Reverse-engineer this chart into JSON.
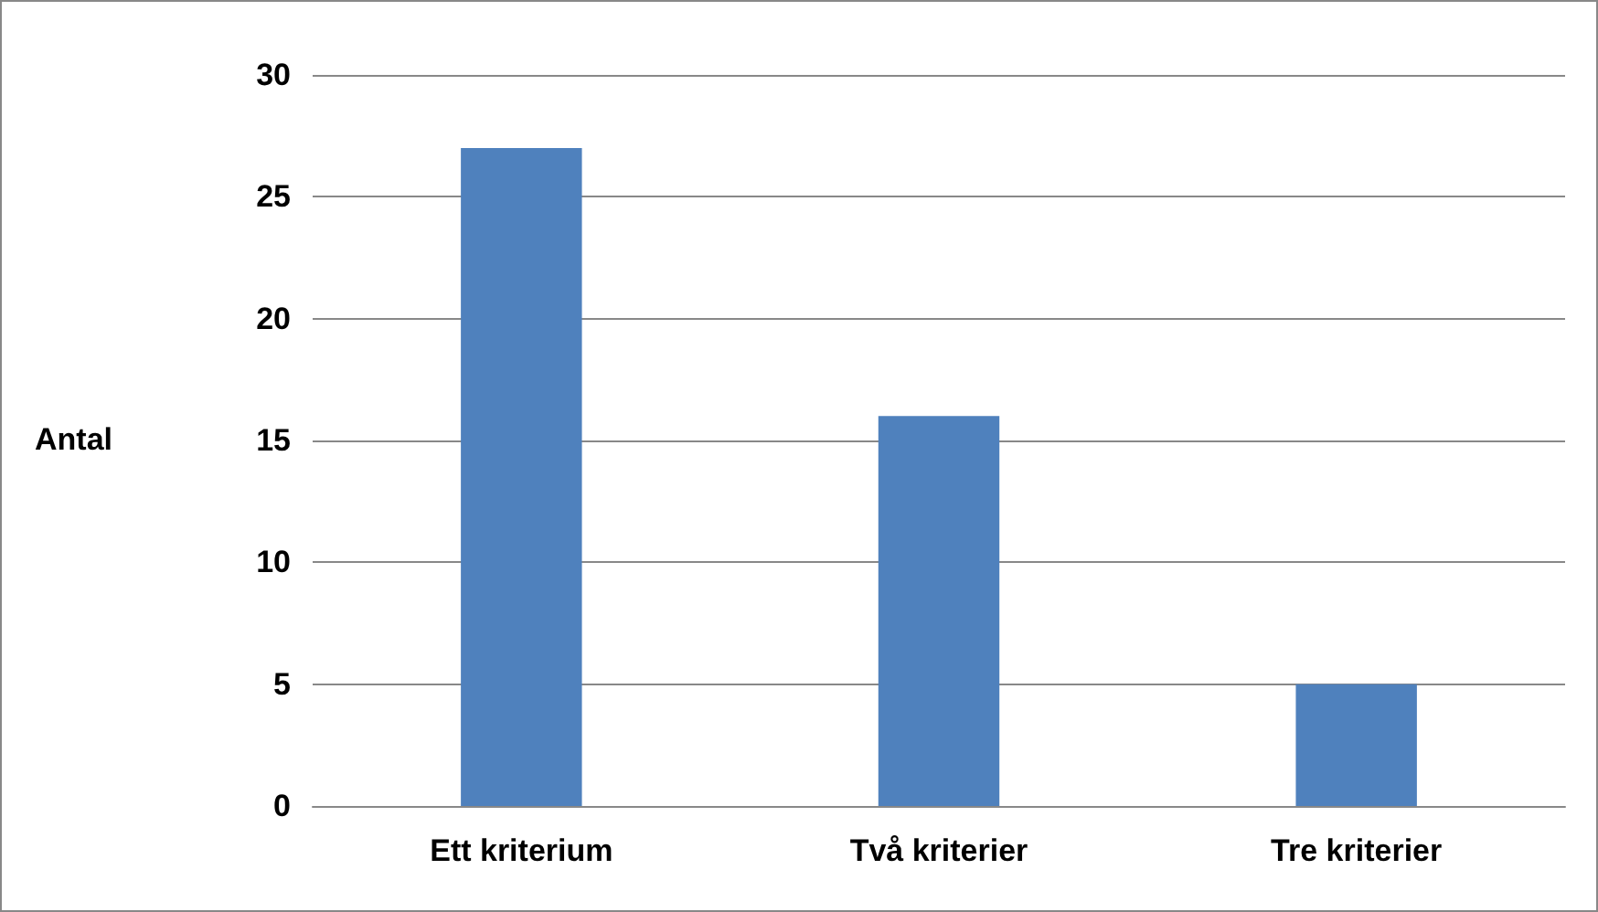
{
  "chart_data": {
    "type": "bar",
    "ylabel": "Antal",
    "categories": [
      "Ett kriterium",
      "Två kriterier",
      "Tre kriterier"
    ],
    "values": [
      27,
      16,
      5
    ],
    "color": "#4f81bd",
    "ylim": [
      0,
      30
    ],
    "yticks": [
      0,
      5,
      10,
      15,
      20,
      25,
      30
    ],
    "grid": "y"
  }
}
